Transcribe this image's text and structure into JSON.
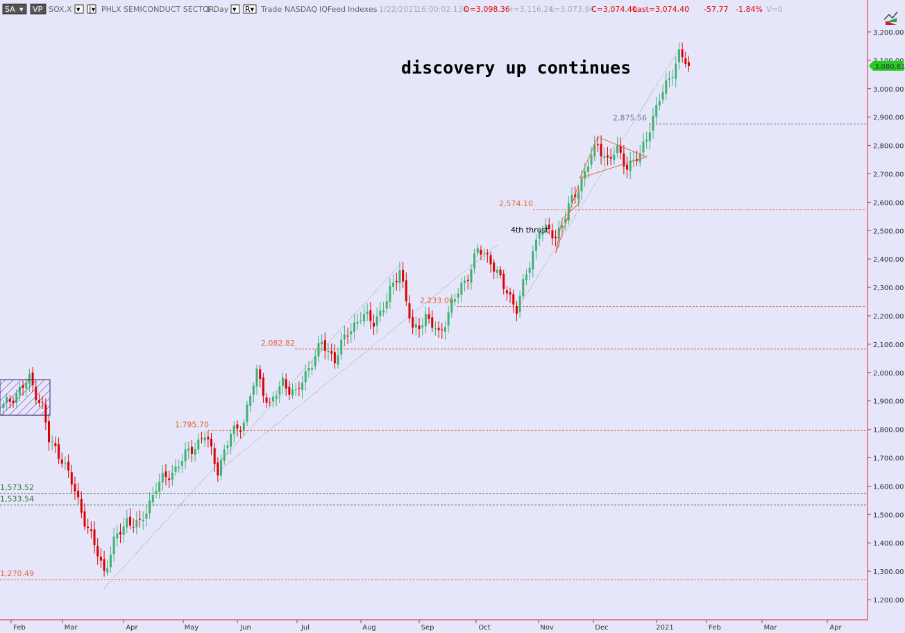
{
  "header": {
    "buttons": [
      "SA",
      "VP"
    ],
    "symbol": "SOX.X",
    "name": "PHLX SEMICONDUCT SECTOR",
    "interval": "1 Day",
    "source_items": [
      "Trade",
      "NASDAQ",
      "IQFeed",
      "Indexes"
    ],
    "datetime": "1/22/2021",
    "time": "16:00:02.136",
    "open": "O=3,098.36",
    "high": "H=3,116.24",
    "low": "L=3,073.94",
    "close": "C=3,074.40",
    "last": "Last=3,074.40",
    "change": "-57.77",
    "change_pct": "-1.84%",
    "volume": "V=0"
  },
  "colors": {
    "background": "#e6e6fa",
    "up_candle": "#3cb371",
    "down_candle": "#dd0000",
    "resistance_line": "#e2673b",
    "support_line": "#2d7d2d",
    "gray_level": "#7777aa",
    "last_price_badge": "#22cc22"
  },
  "chart_data": {
    "type": "candlestick",
    "title": "discovery up continues",
    "y_range": [
      1170,
      3250
    ],
    "y_ticks": [
      1200,
      1300,
      1400,
      1500,
      1600,
      1700,
      1800,
      1900,
      2000,
      2100,
      2200,
      2300,
      2400,
      2500,
      2600,
      2700,
      2800,
      2900,
      3000,
      3100,
      3200
    ],
    "y_tick_labels": [
      "1,200.00",
      "1,300.00",
      "1,400.00",
      "1,500.00",
      "1,600.00",
      "1,700.00",
      "1,800.00",
      "1,900.00",
      "2,000.00",
      "2,100.00",
      "2,200.00",
      "2,300.00",
      "2,400.00",
      "2,500.00",
      "2,600.00",
      "2,700.00",
      "2,800.00",
      "2,900.00",
      "3,000.00",
      "3,100.00",
      "3,200.00"
    ],
    "x_labels": [
      "Feb",
      "Mar",
      "Apr",
      "May",
      "Jun",
      "Jul",
      "Aug",
      "Sep",
      "Oct",
      "Nov",
      "Dec",
      "2021",
      "Feb",
      "Mar",
      "Apr"
    ],
    "last_price": "3,080.61",
    "last_price_value": 3080.61,
    "levels": [
      {
        "label": "2,875.56",
        "value": 2875.56,
        "color": "#7777aa"
      },
      {
        "label": "2,574.10",
        "value": 2574.1,
        "color": "#e2673b"
      },
      {
        "label": "2,233.06",
        "value": 2233.06,
        "color": "#e2673b"
      },
      {
        "label": "2,082.82",
        "value": 2082.82,
        "color": "#e2673b"
      },
      {
        "label": "1,795.70",
        "value": 1795.7,
        "color": "#e2673b"
      },
      {
        "label": "1,573.52",
        "value": 1573.52,
        "color": "#2d7d2d"
      },
      {
        "label": "1,533.54",
        "value": 1533.54,
        "color": "#2d7d2d"
      },
      {
        "label": "1,270.49",
        "value": 1270.49,
        "color": "#e2673b"
      }
    ],
    "annotations": [
      {
        "text": "4th thrust"
      }
    ],
    "anchors": [
      [
        0,
        1880
      ],
      [
        8,
        1975
      ],
      [
        12,
        1880
      ],
      [
        14,
        1760
      ],
      [
        18,
        1700
      ],
      [
        22,
        1580
      ],
      [
        26,
        1450
      ],
      [
        31,
        1300
      ],
      [
        34,
        1400
      ],
      [
        38,
        1480
      ],
      [
        42,
        1460
      ],
      [
        47,
        1600
      ],
      [
        52,
        1650
      ],
      [
        57,
        1720
      ],
      [
        62,
        1780
      ],
      [
        66,
        1660
      ],
      [
        70,
        1780
      ],
      [
        74,
        1830
      ],
      [
        78,
        2000
      ],
      [
        82,
        1880
      ],
      [
        86,
        1970
      ],
      [
        90,
        1920
      ],
      [
        94,
        2020
      ],
      [
        98,
        2100
      ],
      [
        102,
        2050
      ],
      [
        106,
        2140
      ],
      [
        110,
        2200
      ],
      [
        114,
        2180
      ],
      [
        118,
        2250
      ],
      [
        122,
        2370
      ],
      [
        126,
        2140
      ],
      [
        130,
        2200
      ],
      [
        134,
        2130
      ],
      [
        138,
        2240
      ],
      [
        142,
        2320
      ],
      [
        146,
        2430
      ],
      [
        150,
        2400
      ],
      [
        154,
        2300
      ],
      [
        158,
        2230
      ],
      [
        162,
        2380
      ],
      [
        165,
        2510
      ],
      [
        170,
        2480
      ],
      [
        174,
        2580
      ],
      [
        177,
        2650
      ],
      [
        180,
        2740
      ],
      [
        183,
        2800
      ],
      [
        186,
        2750
      ],
      [
        189,
        2780
      ],
      [
        192,
        2730
      ],
      [
        196,
        2760
      ],
      [
        199,
        2870
      ],
      [
        202,
        2960
      ],
      [
        205,
        3040
      ],
      [
        208,
        3120
      ],
      [
        211,
        3080
      ]
    ]
  }
}
